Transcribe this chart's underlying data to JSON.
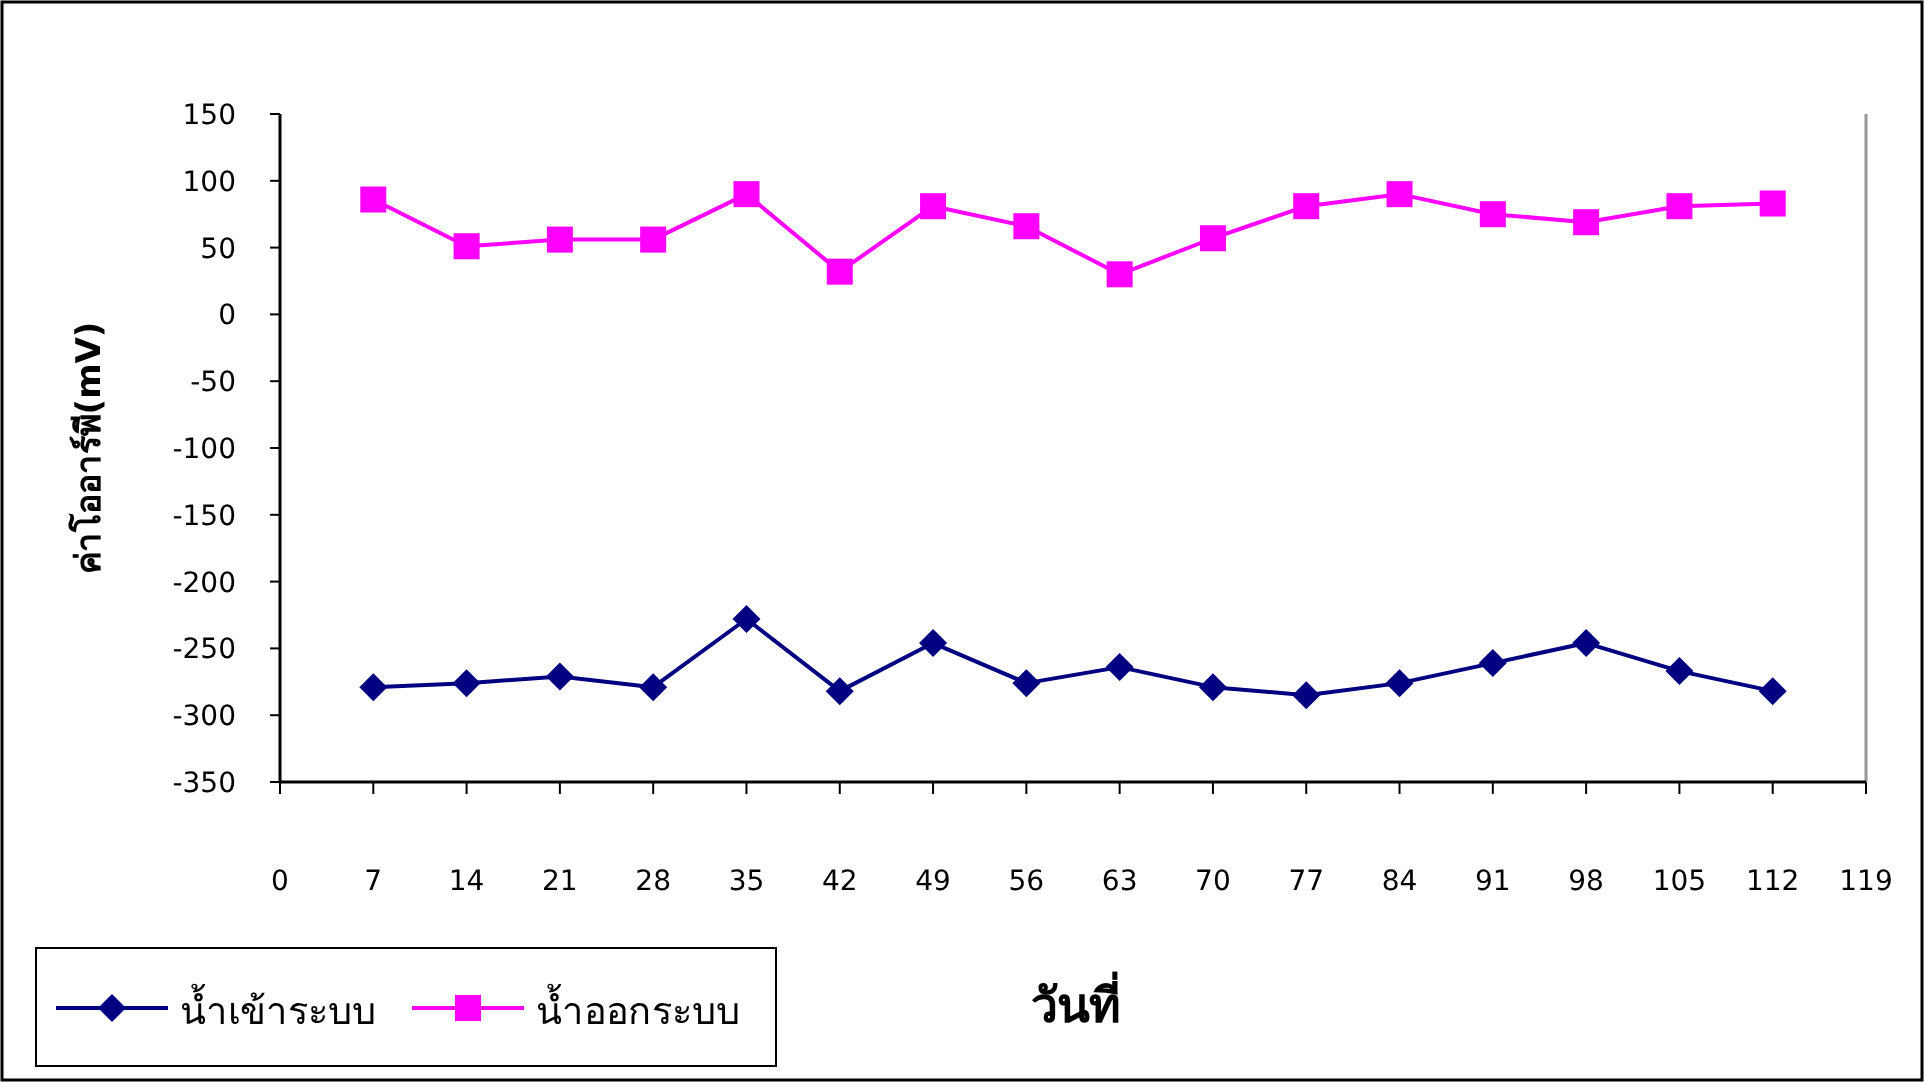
{
  "chart_data": {
    "type": "line",
    "xlabel": "วันที่",
    "ylabel": "ค่าโออาร์พี(mV)",
    "x": [
      7,
      14,
      21,
      28,
      35,
      42,
      49,
      56,
      63,
      70,
      77,
      84,
      91,
      98,
      105,
      112
    ],
    "series": [
      {
        "name": "น้ำเข้าระบบ",
        "color": "#000080",
        "marker": "diamond",
        "values": [
          -279,
          -276,
          -271,
          -279,
          -228,
          -282,
          -246,
          -276,
          -264,
          -279,
          -285,
          -276,
          -261,
          -246,
          -267,
          -282
        ]
      },
      {
        "name": "น้ำออกระบบ",
        "color": "#ff00ff",
        "marker": "square",
        "values": [
          86,
          51,
          56,
          56,
          90,
          32,
          81,
          66,
          30,
          57,
          81,
          90,
          75,
          69,
          81,
          83
        ]
      }
    ],
    "xlim": [
      0,
      119
    ],
    "xticks": [
      0,
      7,
      14,
      21,
      28,
      35,
      42,
      49,
      56,
      63,
      70,
      77,
      84,
      91,
      98,
      105,
      112,
      119
    ],
    "ylim": [
      -350,
      150
    ],
    "yticks": [
      -350,
      -300,
      -250,
      -200,
      -150,
      -100,
      -50,
      0,
      50,
      100,
      150
    ],
    "grid": false,
    "legend": "bottom left",
    "line_style": "solid"
  }
}
